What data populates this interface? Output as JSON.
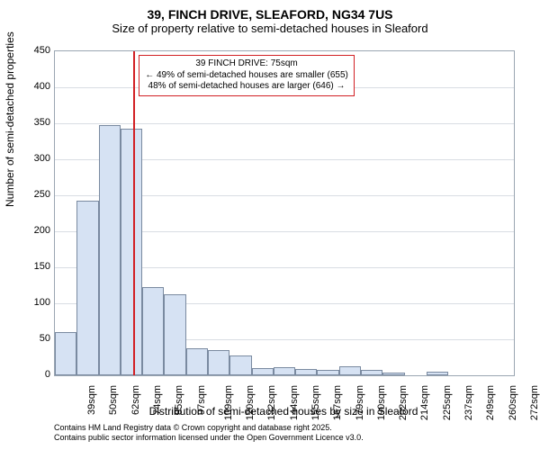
{
  "title": "39, FINCH DRIVE, SLEAFORD, NG34 7US",
  "subtitle": "Size of property relative to semi-detached houses in Sleaford",
  "ylabel": "Number of semi-detached properties",
  "xlabel": "Distribution of semi-detached houses by size in Sleaford",
  "credit_line1": "Contains HM Land Registry data © Crown copyright and database right 2025.",
  "credit_line2": "Contains public sector information licensed under the Open Government Licence v3.0.",
  "chart": {
    "type": "histogram",
    "ylim": [
      0,
      450
    ],
    "ytick_step": 50,
    "yticks": [
      0,
      50,
      100,
      150,
      200,
      250,
      300,
      350,
      400,
      450
    ],
    "x_categories": [
      "39sqm",
      "50sqm",
      "62sqm",
      "74sqm",
      "85sqm",
      "97sqm",
      "109sqm",
      "120sqm",
      "132sqm",
      "144sqm",
      "155sqm",
      "167sqm",
      "179sqm",
      "190sqm",
      "202sqm",
      "214sqm",
      "225sqm",
      "237sqm",
      "249sqm",
      "260sqm",
      "272sqm"
    ],
    "values": [
      60,
      243,
      347,
      343,
      123,
      112,
      38,
      35,
      28,
      10,
      11,
      9,
      8,
      13,
      8,
      4,
      0,
      5,
      0,
      0,
      0
    ],
    "bar_fill": "#d6e2f3",
    "bar_stroke": "#7a8aa0",
    "bar_width_ratio": 1.0,
    "grid_color": "#d9dde3",
    "axis_color": "#9aa6b2",
    "background_color": "#ffffff",
    "tick_fontsize": 11,
    "label_fontsize": 12,
    "title_fontsize": 14,
    "subtitle_fontsize": 13,
    "credit_fontsize": 9,
    "annotation": {
      "line1": "39 FINCH DRIVE: 75sqm",
      "line2": "← 49% of semi-detached houses are smaller (655)",
      "line3": "48% of semi-detached houses are larger (646) →",
      "border_color": "#d22024",
      "fontsize": 10,
      "marker_position_sqm": 75,
      "marker_color": "#d22024"
    }
  }
}
